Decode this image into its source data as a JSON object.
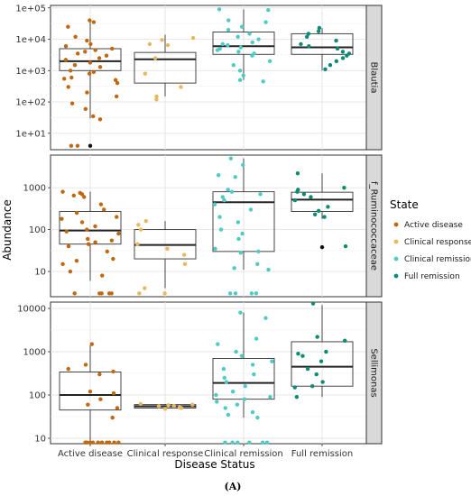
{
  "chart_data": {
    "type": "box",
    "xlabel": "Disease Status",
    "ylabel": "Abundance",
    "caption": "(A)",
    "categories": [
      "Active disease",
      "Clinical response",
      "Clinical remission",
      "Full remission"
    ],
    "legend": {
      "title": "State",
      "placement": "right",
      "items": [
        {
          "label": "Active disease",
          "color": "#c0680e"
        },
        {
          "label": "Clinical response",
          "color": "#e8b861"
        },
        {
          "label": "Clinical remission",
          "color": "#4ecbc4"
        },
        {
          "label": "Full remission",
          "color": "#0b8a74"
        }
      ]
    },
    "y_scale": "log10",
    "grid": true,
    "panels": [
      {
        "strip": "Blautia",
        "ylim": [
          3,
          120000
        ],
        "yticks": [
          10,
          100,
          1000,
          10000,
          100000
        ],
        "yticklabels": [
          "1e+01",
          "1e+02",
          "1e+03",
          "1e+04",
          "1e+05"
        ],
        "boxes": [
          {
            "q1": 1000,
            "median": 2000,
            "q3": 5000,
            "whisker_low": 30,
            "whisker_high": 40000
          },
          {
            "q1": 400,
            "median": 2300,
            "q3": 3800,
            "whisker_low": 150,
            "whisker_high": 14000
          },
          {
            "q1": 3300,
            "median": 6000,
            "q3": 17000,
            "whisker_low": 500,
            "whisker_high": 90000
          },
          {
            "q1": 3300,
            "median": 5500,
            "q3": 15000,
            "whisker_low": 1000,
            "whisker_high": 23000
          }
        ],
        "points": [
          {
            "x": "Active disease",
            "values": [
              40000,
              35000,
              25000,
              12000,
              9000,
              7000,
              6000,
              5000,
              4500,
              4000,
              3500,
              3000,
              2500,
              2200,
              1800,
              1500,
              1300,
              1000,
              900,
              800,
              600,
              550,
              500,
              400,
              300,
              200,
              150,
              90,
              60,
              35,
              28,
              4,
              4
            ]
          },
          {
            "x": "Clinical response",
            "values": [
              11000,
              9500,
              7000,
              6500,
              2500,
              800,
              300,
              150,
              120
            ]
          },
          {
            "x": "Clinical remission",
            "values": [
              90000,
              85000,
              40000,
              35000,
              25000,
              20000,
              15000,
              12000,
              10000,
              8000,
              7000,
              6500,
              5500,
              5000,
              4500,
              4000,
              3500,
              3000,
              2000,
              1500,
              1000,
              700,
              500,
              450
            ]
          },
          {
            "x": "Full remission",
            "values": [
              23000,
              18000,
              15000,
              12000,
              9000,
              7000,
              6000,
              5000,
              4000,
              3500,
              3000,
              2500,
              2000,
              1500,
              1100
            ]
          }
        ],
        "outliers": [
          {
            "x": "Active disease",
            "value": 4
          }
        ]
      },
      {
        "strip": "f_Ruminococcaceae",
        "ylim": [
          2.5,
          6000
        ],
        "yticks": [
          10,
          100,
          1000
        ],
        "yticklabels": [
          "10",
          "100",
          "1000"
        ],
        "boxes": [
          {
            "q1": 45,
            "median": 95,
            "q3": 270,
            "whisker_low": 6,
            "whisker_high": 800
          },
          {
            "q1": 20,
            "median": 43,
            "q3": 100,
            "whisker_low": 4,
            "whisker_high": 160
          },
          {
            "q1": 30,
            "median": 450,
            "q3": 800,
            "whisker_low": 11,
            "whisker_high": 5000
          },
          {
            "q1": 270,
            "median": 520,
            "q3": 780,
            "whisker_low": 180,
            "whisker_high": 2200
          }
        ],
        "points": [
          {
            "x": "Active disease",
            "values": [
              800,
              750,
              700,
              650,
              600,
              400,
              300,
              250,
              200,
              180,
              150,
              120,
              100,
              90,
              80,
              60,
              55,
              50,
              45,
              40,
              30,
              20,
              18,
              15,
              10,
              8,
              3,
              3,
              3,
              3,
              3
            ]
          },
          {
            "x": "Clinical response",
            "values": [
              160,
              130,
              100,
              45,
              35,
              25,
              15,
              4,
              3,
              3
            ]
          },
          {
            "x": "Clinical remission",
            "values": [
              5000,
              3500,
              2000,
              1800,
              900,
              800,
              700,
              600,
              500,
              400,
              300,
              200,
              150,
              100,
              80,
              60,
              35,
              30,
              28,
              15,
              12,
              11,
              3,
              3,
              3,
              3
            ]
          },
          {
            "x": "Full remission",
            "values": [
              2200,
              1000,
              900,
              800,
              700,
              600,
              500,
              350,
              280,
              230,
              200,
              40
            ]
          }
        ],
        "outliers": [
          {
            "x": "Full remission",
            "value": 38
          }
        ]
      },
      {
        "strip": "Sellimonas",
        "ylim": [
          7.5,
          14000
        ],
        "yticks": [
          10,
          100,
          1000,
          10000
        ],
        "yticklabels": [
          "10",
          "100",
          "1000",
          "10000"
        ],
        "boxes": [
          {
            "q1": 45,
            "median": 100,
            "q3": 340,
            "whisker_low": 8,
            "whisker_high": 1400
          },
          {
            "q1": 50,
            "median": 55,
            "q3": 60,
            "whisker_low": 48,
            "whisker_high": 62
          },
          {
            "q1": 80,
            "median": 190,
            "q3": 700,
            "whisker_low": 30,
            "whisker_high": 8000
          },
          {
            "q1": 160,
            "median": 450,
            "q3": 1700,
            "whisker_low": 90,
            "whisker_high": 12000
          }
        ],
        "points": [
          {
            "x": "Active disease",
            "values": [
              1500,
              500,
              400,
              350,
              300,
              120,
              110,
              80,
              60,
              50,
              30,
              8,
              8,
              8,
              8,
              8,
              8,
              8,
              8,
              8,
              8
            ]
          },
          {
            "x": "Clinical response",
            "values": [
              62,
              60,
              58,
              56,
              55,
              52,
              50,
              48
            ]
          },
          {
            "x": "Clinical remission",
            "values": [
              8000,
              6000,
              2000,
              1500,
              1000,
              800,
              600,
              500,
              400,
              300,
              250,
              200,
              160,
              120,
              100,
              90,
              80,
              70,
              60,
              50,
              40,
              35,
              30,
              8,
              8,
              8,
              8,
              8,
              8
            ]
          },
          {
            "x": "Full remission",
            "values": [
              13000,
              2200,
              1800,
              1000,
              900,
              800,
              600,
              400,
              300,
              200,
              160,
              150,
              90
            ]
          }
        ],
        "outliers": []
      }
    ]
  }
}
